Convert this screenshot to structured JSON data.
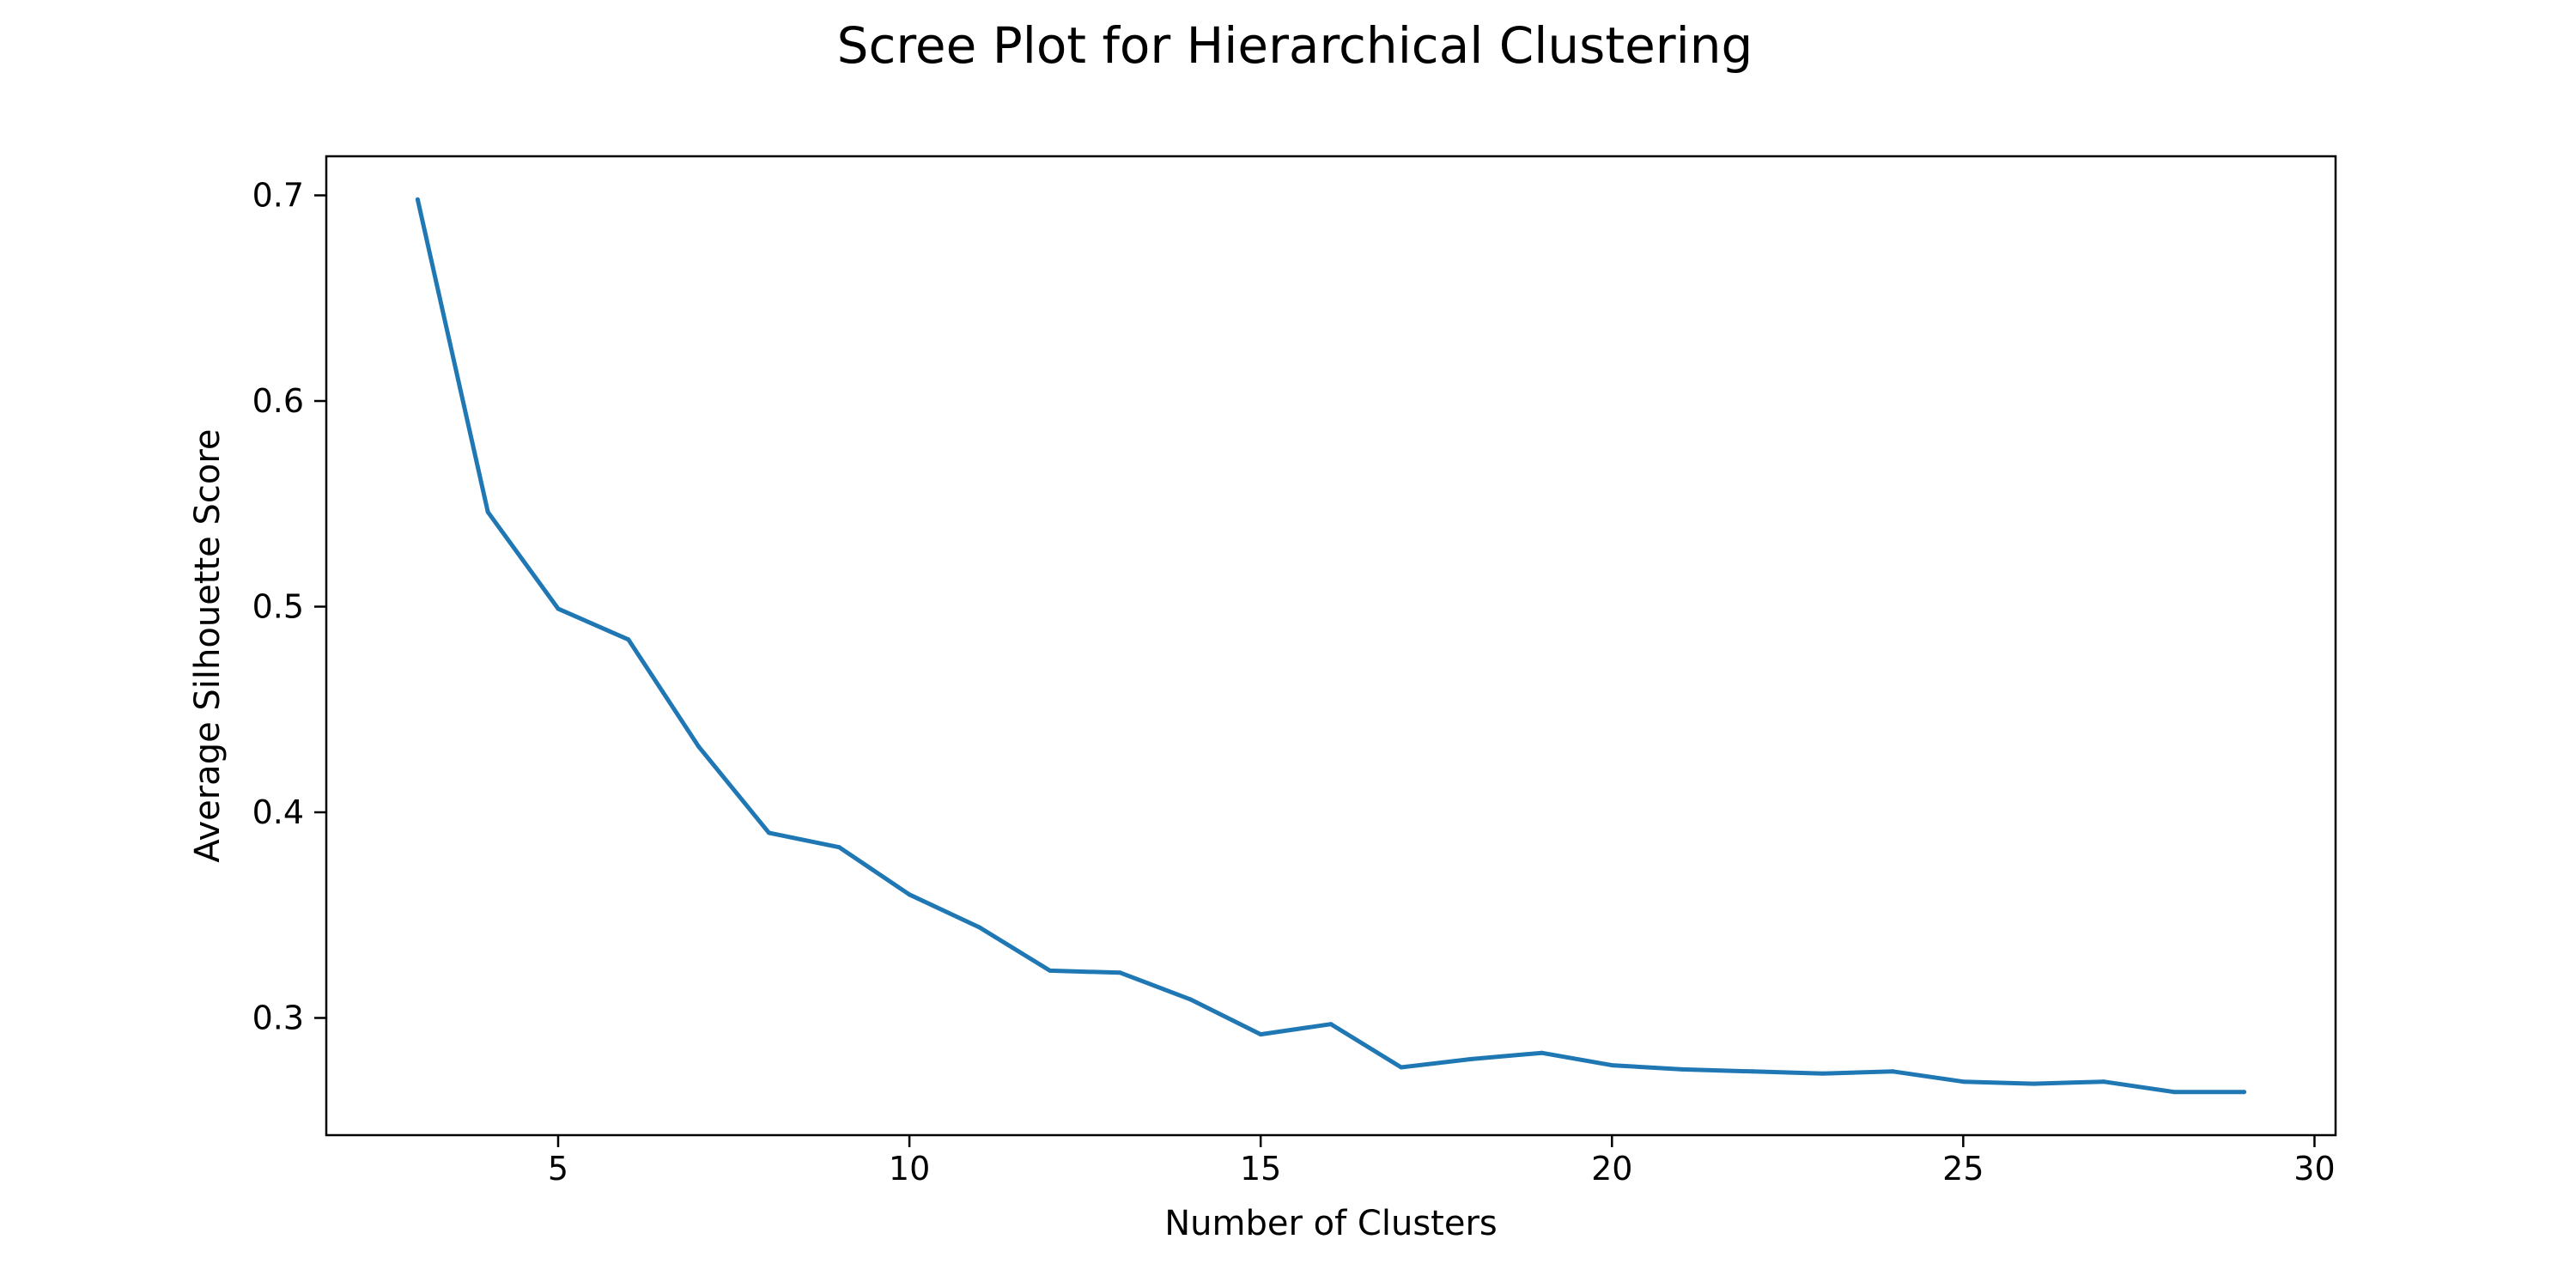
{
  "chart_data": {
    "type": "line",
    "title": "Scree Plot for Hierarchical Clustering",
    "xlabel": "Number of Clusters",
    "ylabel": "Average Silhouette Score",
    "xlim": [
      1.7,
      30.3
    ],
    "ylim": [
      0.243,
      0.719
    ],
    "xticks": [
      5,
      10,
      15,
      20,
      25,
      30
    ],
    "yticks": [
      0.3,
      0.4,
      0.5,
      0.6,
      0.7
    ],
    "xtick_labels": [
      "5",
      "10",
      "15",
      "20",
      "25",
      "30"
    ],
    "ytick_labels": [
      "0.3",
      "0.4",
      "0.5",
      "0.6",
      "0.7"
    ],
    "grid": false,
    "legend": "none",
    "series": [
      {
        "color": "#1f77b4",
        "x": [
          3,
          4,
          5,
          6,
          7,
          8,
          9,
          10,
          11,
          12,
          13,
          14,
          15,
          16,
          17,
          18,
          19,
          20,
          21,
          22,
          23,
          24,
          25,
          26,
          27,
          28,
          29
        ],
        "y": [
          0.698,
          0.546,
          0.499,
          0.484,
          0.432,
          0.39,
          0.383,
          0.36,
          0.344,
          0.323,
          0.322,
          0.309,
          0.292,
          0.297,
          0.276,
          0.28,
          0.283,
          0.277,
          0.275,
          0.274,
          0.273,
          0.274,
          0.269,
          0.268,
          0.269,
          0.264,
          0.264
        ]
      }
    ]
  }
}
